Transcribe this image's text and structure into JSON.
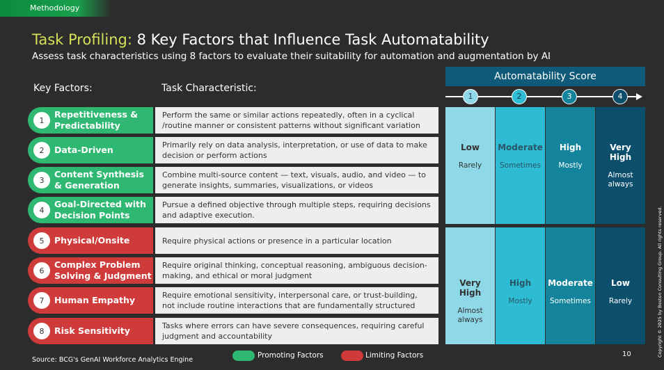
{
  "section": "Methodology",
  "title": {
    "accent": "Task Profiling:",
    "rest": " 8 Key Factors that Influence Task Automatability"
  },
  "subtitle": "Assess task characteristics using 8 factors to evaluate their suitability for automation and augmentation by AI",
  "columns": {
    "factors": "Key Factors:",
    "characteristic": "Task Characteristic:"
  },
  "factors": [
    {
      "num": "1",
      "label": "Repetitiveness & Predictability",
      "type": "promoting",
      "desc": "Perform the same or similar actions repeatedly, often in a cyclical /routine manner or consistent patterns without significant variation"
    },
    {
      "num": "2",
      "label": "Data-Driven",
      "type": "promoting",
      "desc": "Primarily rely on data analysis, interpretation, or use of data to make decision or perform actions"
    },
    {
      "num": "3",
      "label": "Content Synthesis & Generation",
      "type": "promoting",
      "desc": "Combine multi-source content — text, visuals, audio, and video — to generate insights, summaries, visualizations, or videos"
    },
    {
      "num": "4",
      "label": "Goal-Directed with Decision Points",
      "type": "promoting",
      "desc": "Pursue a defined objective through multiple steps, requiring decisions and adaptive execution."
    },
    {
      "num": "5",
      "label": "Physical/Onsite",
      "type": "limiting",
      "desc": "Require physical actions or presence in a particular location"
    },
    {
      "num": "6",
      "label": "Complex Problem Solving & Judgment",
      "type": "limiting",
      "desc": "Require original thinking, conceptual reasoning, ambiguous decision-making, and ethical or moral judgment"
    },
    {
      "num": "7",
      "label": "Human Empathy",
      "type": "limiting",
      "desc": "Require emotional sensitivity, interpersonal care, or trust-building, not include routine interactions that are fundamentally structured"
    },
    {
      "num": "8",
      "label": "Risk Sensitivity",
      "type": "limiting",
      "desc": "Tasks where errors can have severe consequences, requiring careful judgment and accountability"
    }
  ],
  "score": {
    "header": "Automatability Score",
    "scale": [
      "1",
      "2",
      "3",
      "4"
    ],
    "colors": [
      "#8fd8e8",
      "#2dbcd4",
      "#13849c",
      "#0c4f6c"
    ],
    "promoting": [
      {
        "level": "Low",
        "freq": "Rarely"
      },
      {
        "level": "Moderate",
        "freq": "Sometimes"
      },
      {
        "level": "High",
        "freq": "Mostly"
      },
      {
        "level": "Very High",
        "freq": "Almost always"
      }
    ],
    "limiting": [
      {
        "level": "Very High",
        "freq": "Almost always"
      },
      {
        "level": "High",
        "freq": "Mostly"
      },
      {
        "level": "Moderate",
        "freq": "Sometimes"
      },
      {
        "level": "Low",
        "freq": "Rarely"
      }
    ]
  },
  "legend": {
    "promoting": "Promoting Factors",
    "limiting": "Limiting Factors"
  },
  "colors": {
    "promoting": "#2eb872",
    "limiting": "#cf3a3a",
    "accent": "#d4e157"
  },
  "source": "Source: BCG's GenAI Workforce Analytics Engine",
  "page_number": "10",
  "copyright": "Copyright © 2025 by Boston Consulting Group. All rights reserved."
}
